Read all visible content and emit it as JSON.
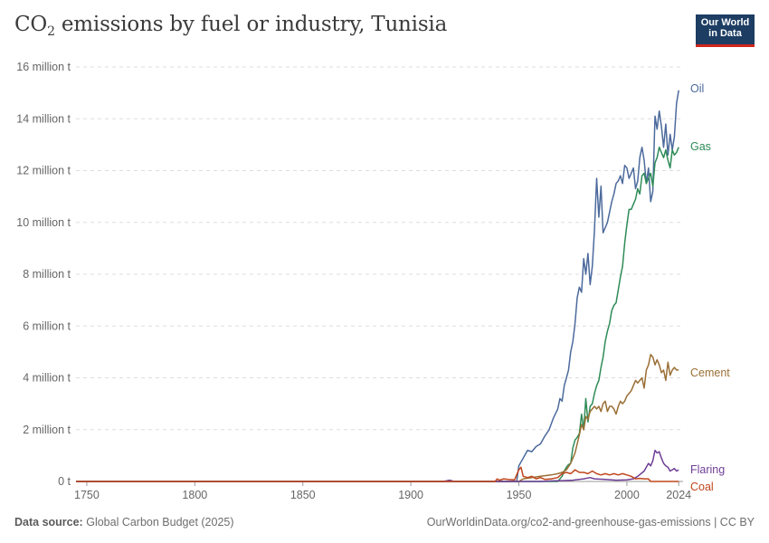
{
  "header": {
    "title_main": "CO",
    "title_sub": "2",
    "title_rest": " emissions by fuel or industry, Tunisia",
    "logo_line1": "Our World",
    "logo_line2": "in Data"
  },
  "footer": {
    "source_label": "Data source:",
    "source_value": "Global Carbon Budget (2025)",
    "url": "OurWorldinData.org/co2-and-greenhouse-gas-emissions | CC BY"
  },
  "colors": {
    "Oil": "#4c6a9c",
    "Gas": "#2e8b57",
    "Cement": "#9a6f35",
    "Flaring": "#6f3e96",
    "Coal": "#c0461d"
  },
  "chart_data": {
    "type": "line",
    "title": "CO₂ emissions by fuel or industry, Tunisia",
    "xlim": [
      1745,
      2026
    ],
    "ylim": [
      0,
      16000000
    ],
    "x_ticks": [
      {
        "value": 1750,
        "label": "1750"
      },
      {
        "value": 1800,
        "label": "1800"
      },
      {
        "value": 1850,
        "label": "1850"
      },
      {
        "value": 1900,
        "label": "1900"
      },
      {
        "value": 1950,
        "label": "1950"
      },
      {
        "value": 2000,
        "label": "2000"
      },
      {
        "value": 2024,
        "label": "2024"
      }
    ],
    "y_ticks": [
      {
        "value": 0,
        "label": "0 t"
      },
      {
        "value": 2000000,
        "label": "2 million t"
      },
      {
        "value": 4000000,
        "label": "4 million t"
      },
      {
        "value": 6000000,
        "label": "6 million t"
      },
      {
        "value": 8000000,
        "label": "8 million t"
      },
      {
        "value": 10000000,
        "label": "10 million t"
      },
      {
        "value": 12000000,
        "label": "12 million t"
      },
      {
        "value": 14000000,
        "label": "14 million t"
      },
      {
        "value": 16000000,
        "label": "16 million t"
      }
    ],
    "grid": true,
    "legend": "end-of-line labels",
    "series": [
      {
        "name": "Oil",
        "points": [
          [
            1745,
            0
          ],
          [
            1949,
            0
          ],
          [
            1950,
            600000
          ],
          [
            1952,
            900000
          ],
          [
            1954,
            1200000
          ],
          [
            1956,
            1150000
          ],
          [
            1958,
            1350000
          ],
          [
            1960,
            1450000
          ],
          [
            1962,
            1750000
          ],
          [
            1964,
            2000000
          ],
          [
            1966,
            2450000
          ],
          [
            1968,
            2800000
          ],
          [
            1969,
            3200000
          ],
          [
            1970,
            3100000
          ],
          [
            1971,
            3700000
          ],
          [
            1972,
            4000000
          ],
          [
            1973,
            4300000
          ],
          [
            1974,
            5000000
          ],
          [
            1975,
            5400000
          ],
          [
            1976,
            6100000
          ],
          [
            1977,
            7100000
          ],
          [
            1978,
            7500000
          ],
          [
            1979,
            7300000
          ],
          [
            1980,
            8600000
          ],
          [
            1981,
            8000000
          ],
          [
            1982,
            8800000
          ],
          [
            1983,
            7600000
          ],
          [
            1984,
            8300000
          ],
          [
            1985,
            9700000
          ],
          [
            1986,
            11700000
          ],
          [
            1987,
            10200000
          ],
          [
            1988,
            11400000
          ],
          [
            1989,
            9600000
          ],
          [
            1990,
            9800000
          ],
          [
            1991,
            10000000
          ],
          [
            1992,
            10400000
          ],
          [
            1993,
            10800000
          ],
          [
            1994,
            11100000
          ],
          [
            1995,
            11500000
          ],
          [
            1996,
            11600000
          ],
          [
            1997,
            11800000
          ],
          [
            1998,
            11500000
          ],
          [
            1999,
            12200000
          ],
          [
            2000,
            12100000
          ],
          [
            2001,
            11700000
          ],
          [
            2002,
            11900000
          ],
          [
            2003,
            12100000
          ],
          [
            2004,
            11300000
          ],
          [
            2005,
            11600000
          ],
          [
            2006,
            12500000
          ],
          [
            2007,
            12900000
          ],
          [
            2008,
            12400000
          ],
          [
            2009,
            11500000
          ],
          [
            2010,
            12100000
          ],
          [
            2011,
            10800000
          ],
          [
            2012,
            11200000
          ],
          [
            2013,
            14100000
          ],
          [
            2014,
            13600000
          ],
          [
            2015,
            14300000
          ],
          [
            2016,
            13700000
          ],
          [
            2017,
            12900000
          ],
          [
            2018,
            13800000
          ],
          [
            2019,
            12600000
          ],
          [
            2020,
            13400000
          ],
          [
            2021,
            12800000
          ],
          [
            2022,
            13300000
          ],
          [
            2023,
            14600000
          ],
          [
            2024,
            15100000
          ]
        ]
      },
      {
        "name": "Gas",
        "points": [
          [
            1745,
            0
          ],
          [
            1968,
            0
          ],
          [
            1970,
            200000
          ],
          [
            1971,
            400000
          ],
          [
            1972,
            550000
          ],
          [
            1973,
            650000
          ],
          [
            1974,
            700000
          ],
          [
            1975,
            1300000
          ],
          [
            1976,
            1600000
          ],
          [
            1977,
            1700000
          ],
          [
            1978,
            1850000
          ],
          [
            1979,
            2600000
          ],
          [
            1980,
            2000000
          ],
          [
            1981,
            3200000
          ],
          [
            1982,
            2300000
          ],
          [
            1983,
            2900000
          ],
          [
            1984,
            3000000
          ],
          [
            1985,
            3400000
          ],
          [
            1986,
            3700000
          ],
          [
            1987,
            3900000
          ],
          [
            1988,
            4400000
          ],
          [
            1989,
            4800000
          ],
          [
            1990,
            5400000
          ],
          [
            1991,
            5800000
          ],
          [
            1992,
            6100000
          ],
          [
            1993,
            6600000
          ],
          [
            1994,
            6800000
          ],
          [
            1995,
            6900000
          ],
          [
            1996,
            7400000
          ],
          [
            1997,
            7900000
          ],
          [
            1998,
            8300000
          ],
          [
            1999,
            9200000
          ],
          [
            2000,
            9900000
          ],
          [
            2001,
            10500000
          ],
          [
            2002,
            10500000
          ],
          [
            2003,
            10700000
          ],
          [
            2004,
            10900000
          ],
          [
            2005,
            11300000
          ],
          [
            2006,
            11100000
          ],
          [
            2007,
            11800000
          ],
          [
            2008,
            11900000
          ],
          [
            2009,
            11500000
          ],
          [
            2010,
            11700000
          ],
          [
            2011,
            11900000
          ],
          [
            2012,
            11400000
          ],
          [
            2013,
            12300000
          ],
          [
            2014,
            12500000
          ],
          [
            2015,
            12900000
          ],
          [
            2016,
            12700000
          ],
          [
            2017,
            12500000
          ],
          [
            2018,
            12800000
          ],
          [
            2019,
            12400000
          ],
          [
            2020,
            12100000
          ],
          [
            2021,
            12800000
          ],
          [
            2022,
            12600000
          ],
          [
            2023,
            12700000
          ],
          [
            2024,
            12900000
          ]
        ]
      },
      {
        "name": "Cement",
        "points": [
          [
            1745,
            0
          ],
          [
            1950,
            0
          ],
          [
            1952,
            100000
          ],
          [
            1956,
            150000
          ],
          [
            1960,
            200000
          ],
          [
            1965,
            250000
          ],
          [
            1968,
            300000
          ],
          [
            1970,
            350000
          ],
          [
            1972,
            450000
          ],
          [
            1974,
            700000
          ],
          [
            1976,
            1100000
          ],
          [
            1978,
            1800000
          ],
          [
            1979,
            2200000
          ],
          [
            1980,
            2000000
          ],
          [
            1981,
            2500000
          ],
          [
            1982,
            2400000
          ],
          [
            1983,
            2700000
          ],
          [
            1984,
            2800000
          ],
          [
            1985,
            2900000
          ],
          [
            1986,
            2800000
          ],
          [
            1987,
            2900000
          ],
          [
            1988,
            2700000
          ],
          [
            1989,
            3000000
          ],
          [
            1990,
            3100000
          ],
          [
            1991,
            2700000
          ],
          [
            1992,
            2900000
          ],
          [
            1993,
            2900000
          ],
          [
            1994,
            2800000
          ],
          [
            1995,
            2600000
          ],
          [
            1996,
            2900000
          ],
          [
            1997,
            3100000
          ],
          [
            1998,
            3000000
          ],
          [
            1999,
            3100000
          ],
          [
            2000,
            3300000
          ],
          [
            2001,
            3400000
          ],
          [
            2002,
            3500000
          ],
          [
            2003,
            3700000
          ],
          [
            2004,
            3900000
          ],
          [
            2005,
            3800000
          ],
          [
            2006,
            3900000
          ],
          [
            2007,
            4000000
          ],
          [
            2008,
            3600000
          ],
          [
            2009,
            4300000
          ],
          [
            2010,
            4500000
          ],
          [
            2011,
            4900000
          ],
          [
            2012,
            4800000
          ],
          [
            2013,
            4500000
          ],
          [
            2014,
            4700000
          ],
          [
            2015,
            4500000
          ],
          [
            2016,
            4200000
          ],
          [
            2017,
            4300000
          ],
          [
            2018,
            3900000
          ],
          [
            2019,
            4600000
          ],
          [
            2020,
            4100000
          ],
          [
            2021,
            4300000
          ],
          [
            2022,
            4400000
          ],
          [
            2023,
            4300000
          ],
          [
            2024,
            4300000
          ]
        ]
      },
      {
        "name": "Flaring",
        "points": [
          [
            1745,
            0
          ],
          [
            1915,
            0
          ],
          [
            1918,
            50000
          ],
          [
            1920,
            0
          ],
          [
            1960,
            0
          ],
          [
            1965,
            20000
          ],
          [
            1970,
            30000
          ],
          [
            1975,
            50000
          ],
          [
            1980,
            100000
          ],
          [
            1983,
            150000
          ],
          [
            1985,
            100000
          ],
          [
            1990,
            80000
          ],
          [
            1995,
            50000
          ],
          [
            2000,
            60000
          ],
          [
            2003,
            100000
          ],
          [
            2005,
            200000
          ],
          [
            2008,
            400000
          ],
          [
            2010,
            700000
          ],
          [
            2011,
            600000
          ],
          [
            2012,
            800000
          ],
          [
            2013,
            1200000
          ],
          [
            2014,
            1100000
          ],
          [
            2015,
            1150000
          ],
          [
            2016,
            900000
          ],
          [
            2017,
            700000
          ],
          [
            2018,
            600000
          ],
          [
            2019,
            550000
          ],
          [
            2020,
            400000
          ],
          [
            2021,
            450000
          ],
          [
            2022,
            500000
          ],
          [
            2023,
            400000
          ],
          [
            2024,
            450000
          ]
        ]
      },
      {
        "name": "Coal",
        "points": [
          [
            1745,
            0
          ],
          [
            1939,
            0
          ],
          [
            1940,
            100000
          ],
          [
            1941,
            50000
          ],
          [
            1943,
            100000
          ],
          [
            1945,
            80000
          ],
          [
            1948,
            60000
          ],
          [
            1950,
            450000
          ],
          [
            1951,
            550000
          ],
          [
            1952,
            200000
          ],
          [
            1954,
            150000
          ],
          [
            1956,
            200000
          ],
          [
            1958,
            100000
          ],
          [
            1960,
            150000
          ],
          [
            1962,
            80000
          ],
          [
            1965,
            100000
          ],
          [
            1968,
            150000
          ],
          [
            1970,
            300000
          ],
          [
            1972,
            350000
          ],
          [
            1974,
            300000
          ],
          [
            1976,
            450000
          ],
          [
            1978,
            350000
          ],
          [
            1980,
            350000
          ],
          [
            1982,
            300000
          ],
          [
            1984,
            400000
          ],
          [
            1986,
            300000
          ],
          [
            1988,
            250000
          ],
          [
            1990,
            300000
          ],
          [
            1992,
            250000
          ],
          [
            1994,
            300000
          ],
          [
            1996,
            250000
          ],
          [
            1998,
            300000
          ],
          [
            2000,
            250000
          ],
          [
            2002,
            200000
          ],
          [
            2004,
            100000
          ],
          [
            2006,
            120000
          ],
          [
            2008,
            100000
          ],
          [
            2010,
            100000
          ],
          [
            2011,
            0
          ],
          [
            2024,
            0
          ]
        ]
      }
    ]
  }
}
